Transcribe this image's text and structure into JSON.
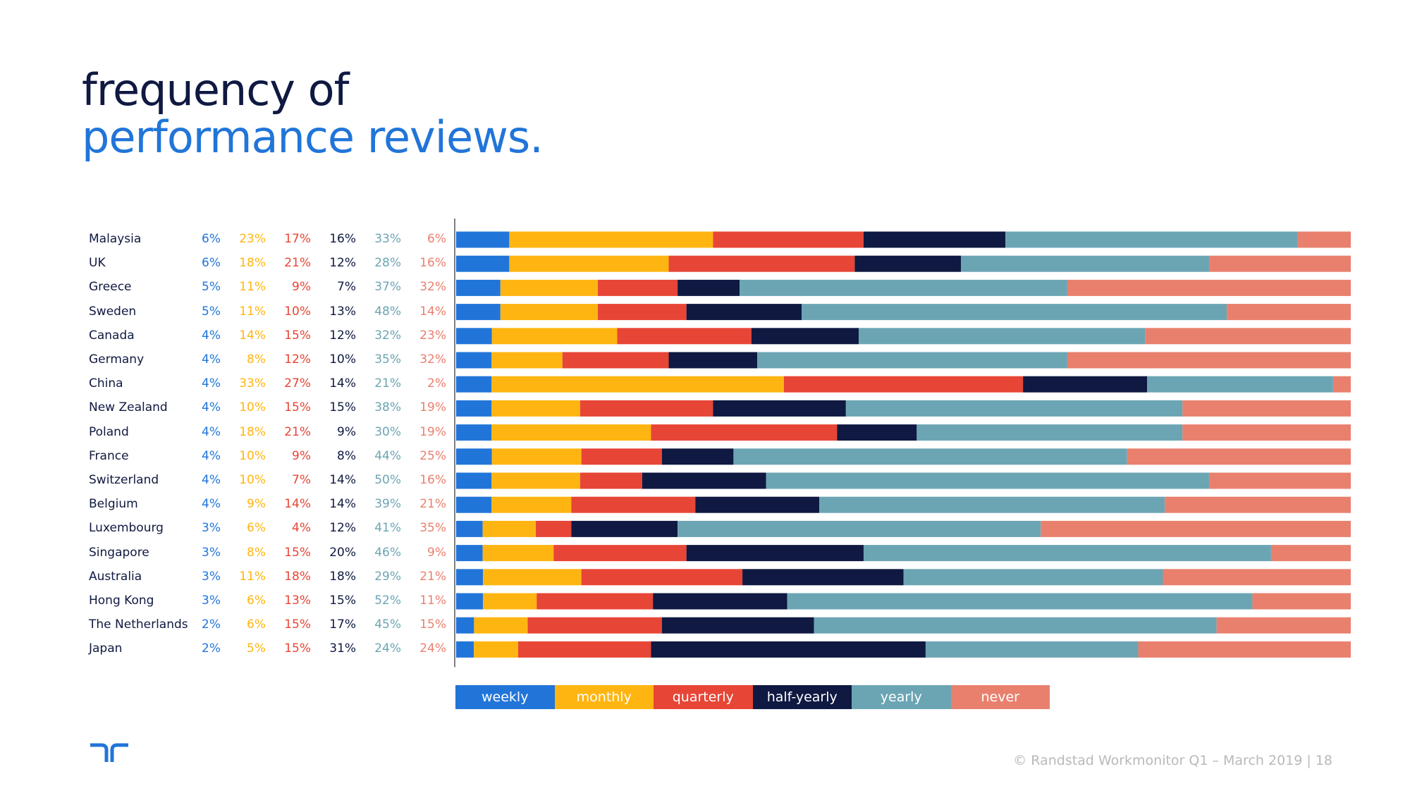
{
  "title": {
    "line1": "frequency of",
    "line2": "performance reviews."
  },
  "colors": {
    "weekly": "#2175d9",
    "monthly": "#ffb511",
    "quarterly": "#e74536",
    "half-yearly": "#0f1941",
    "yearly": "#6ba5b4",
    "never": "#e9806e"
  },
  "chart_data": {
    "type": "bar",
    "orientation": "horizontal",
    "stacked": true,
    "title": "frequency of performance reviews.",
    "categories": [
      "Malaysia",
      "UK",
      "Greece",
      "Sweden",
      "Canada",
      "Germany",
      "China",
      "New Zealand",
      "Poland",
      "France",
      "Switzerland",
      "Belgium",
      "Luxembourg",
      "Singapore",
      "Australia",
      "Hong Kong",
      "The Netherlands",
      "Japan"
    ],
    "series": [
      {
        "name": "weekly",
        "values": [
          6,
          6,
          5,
          5,
          4,
          4,
          4,
          4,
          4,
          4,
          4,
          4,
          3,
          3,
          3,
          3,
          2,
          2
        ]
      },
      {
        "name": "monthly",
        "values": [
          23,
          18,
          11,
          11,
          14,
          8,
          33,
          10,
          18,
          10,
          10,
          9,
          6,
          8,
          11,
          6,
          6,
          5
        ]
      },
      {
        "name": "quarterly",
        "values": [
          17,
          21,
          9,
          10,
          15,
          12,
          27,
          15,
          21,
          9,
          7,
          14,
          4,
          15,
          18,
          13,
          15,
          15
        ]
      },
      {
        "name": "half-yearly",
        "values": [
          16,
          12,
          7,
          13,
          12,
          10,
          14,
          15,
          9,
          8,
          14,
          14,
          12,
          20,
          18,
          15,
          17,
          31
        ]
      },
      {
        "name": "yearly",
        "values": [
          33,
          28,
          37,
          48,
          32,
          35,
          21,
          38,
          30,
          44,
          50,
          39,
          41,
          46,
          29,
          52,
          45,
          24
        ]
      },
      {
        "name": "never",
        "values": [
          6,
          16,
          32,
          14,
          23,
          32,
          2,
          19,
          19,
          25,
          16,
          21,
          35,
          9,
          21,
          11,
          15,
          24
        ]
      }
    ],
    "value_suffix": "%",
    "legend": [
      "weekly",
      "monthly",
      "quarterly",
      "half-yearly",
      "yearly",
      "never"
    ],
    "legend_position": "bottom"
  },
  "footer": {
    "text": "© Randstad Workmonitor Q1 – March 2019  |  18"
  }
}
